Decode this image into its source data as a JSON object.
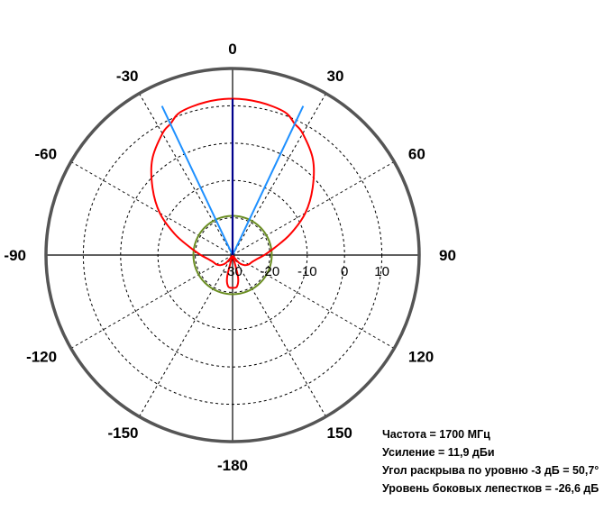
{
  "chart_data": {
    "type": "polar-line",
    "title": "",
    "angle_ticks": [
      0,
      30,
      60,
      90,
      120,
      150,
      -180,
      -150,
      -120,
      -90,
      -60,
      -30
    ],
    "angle_tick_labels": [
      "0",
      "30",
      "60",
      "90",
      "120",
      "150",
      "-180",
      "-150",
      "-120",
      "-90",
      "-60",
      "-30"
    ],
    "radial_ticks": [
      -30,
      -20,
      -10,
      0,
      10
    ],
    "radial_tick_labels": [
      "-30",
      "-20",
      "-10",
      "0",
      "10"
    ],
    "radial_range": [
      -30,
      20
    ],
    "grid": true,
    "series": [
      {
        "color": "#ff0000",
        "description": "radiation pattern (dB)",
        "points": [
          {
            "angle": 0,
            "value": 11.9
          },
          {
            "angle": 10,
            "value": 11.6
          },
          {
            "angle": 20,
            "value": 10.8
          },
          {
            "angle": 25.35,
            "value": 8.9
          },
          {
            "angle": 30,
            "value": 7.6
          },
          {
            "angle": 40,
            "value": 3.5
          },
          {
            "angle": 50,
            "value": -2.0
          },
          {
            "angle": 60,
            "value": -7.5
          },
          {
            "angle": 70,
            "value": -13.5
          },
          {
            "angle": 80,
            "value": -18.5
          },
          {
            "angle": 90,
            "value": -21.5
          },
          {
            "angle": 100,
            "value": -23.5
          },
          {
            "angle": 110,
            "value": -24.5
          },
          {
            "angle": 120,
            "value": -25.0
          },
          {
            "angle": 130,
            "value": -25.8
          },
          {
            "angle": 140,
            "value": -27.2
          },
          {
            "angle": 150,
            "value": -29.6
          },
          {
            "angle": 158,
            "value": -30.0
          },
          {
            "angle": 166,
            "value": -24.0
          },
          {
            "angle": 172,
            "value": -21.5
          },
          {
            "angle": 180,
            "value": -21.2
          },
          {
            "angle": -172,
            "value": -21.5
          },
          {
            "angle": -166,
            "value": -24.0
          },
          {
            "angle": -158,
            "value": -30.0
          },
          {
            "angle": -150,
            "value": -29.6
          },
          {
            "angle": -140,
            "value": -27.2
          },
          {
            "angle": -130,
            "value": -25.8
          },
          {
            "angle": -120,
            "value": -25.0
          },
          {
            "angle": -110,
            "value": -24.5
          },
          {
            "angle": -100,
            "value": -23.5
          },
          {
            "angle": -90,
            "value": -21.5
          },
          {
            "angle": -80,
            "value": -18.5
          },
          {
            "angle": -70,
            "value": -13.5
          },
          {
            "angle": -60,
            "value": -7.5
          },
          {
            "angle": -50,
            "value": -2.0
          },
          {
            "angle": -40,
            "value": 3.5
          },
          {
            "angle": -30,
            "value": 7.6
          },
          {
            "angle": -25.35,
            "value": 8.9
          },
          {
            "angle": -20,
            "value": 10.8
          },
          {
            "angle": -10,
            "value": 11.6
          }
        ]
      },
      {
        "color": "#6b8e23",
        "description": "reference circle (-3 dB below peak radius marker)",
        "constant_value": -19.5
      }
    ],
    "markers": [
      {
        "color": "#1e90ff",
        "angles": [
          -25.35,
          25.35
        ],
        "description": "-3 dB beamwidth lines"
      },
      {
        "color": "#00008b",
        "angles": [
          0
        ],
        "description": "main lobe direction"
      }
    ]
  },
  "info": {
    "frequency": "Частота = 1700 МГц",
    "gain": "Усиление = 11,9 дБи",
    "beamwidth": "Угол раскрыва по уровню -3 дБ = 50,7°",
    "sidelobe": "Уровень боковых лепестков = -26,6 дБ"
  }
}
